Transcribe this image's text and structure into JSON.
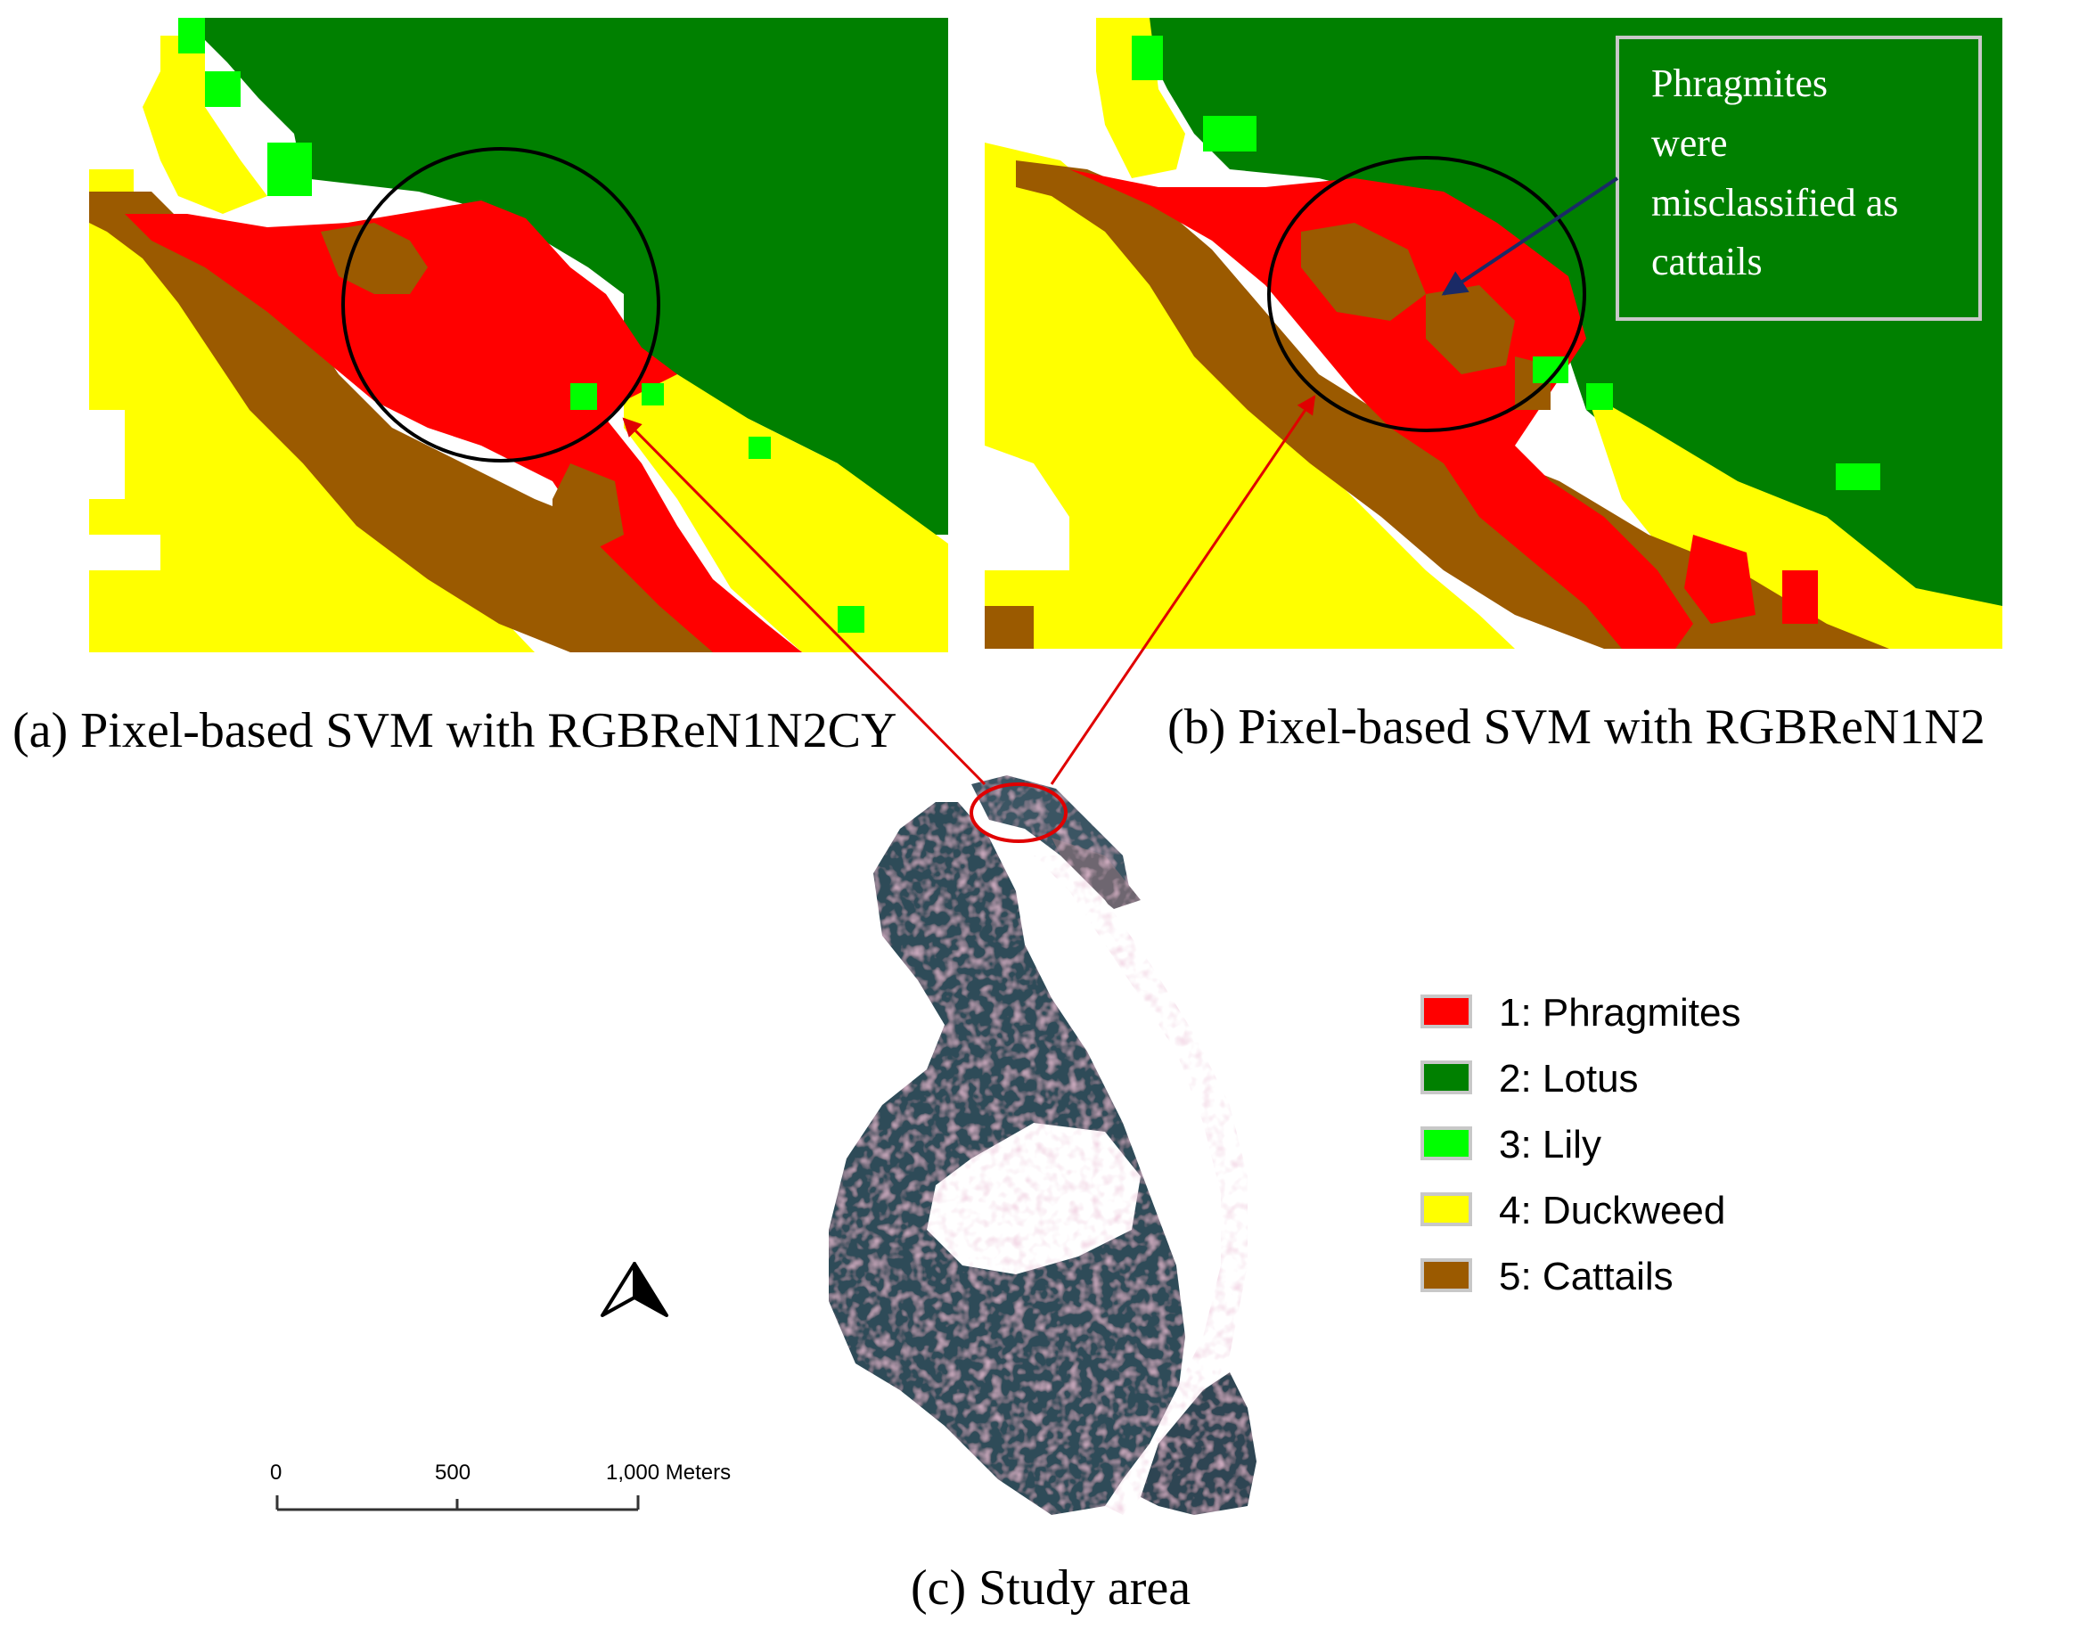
{
  "panels": {
    "a": {
      "caption": "(a) Pixel-based SVM with RGBReN1N2CY"
    },
    "b": {
      "caption": "(b) Pixel-based SVM with RGBReN1N2",
      "annotation": [
        "Phragmites",
        "were",
        "misclassified as",
        "cattails"
      ]
    },
    "c": {
      "caption": "(c) Study area"
    }
  },
  "legend": [
    {
      "label": "1: Phragmites",
      "color": "#ff0000"
    },
    {
      "label": "2: Lotus",
      "color": "#008000"
    },
    {
      "label": "3: Lily",
      "color": "#00ff00"
    },
    {
      "label": "4: Duckweed",
      "color": "#ffff00"
    },
    {
      "label": "5: Cattails",
      "color": "#9b5a00"
    }
  ],
  "scalebar": {
    "ticks": [
      "0",
      "500",
      "1,000 Meters"
    ]
  },
  "north_arrow": {
    "icon": "north-arrow-icon"
  },
  "colors": {
    "arrow": "#e00000",
    "annotation_arrow": "#1a2a66",
    "frame": "#c8c8c8"
  }
}
